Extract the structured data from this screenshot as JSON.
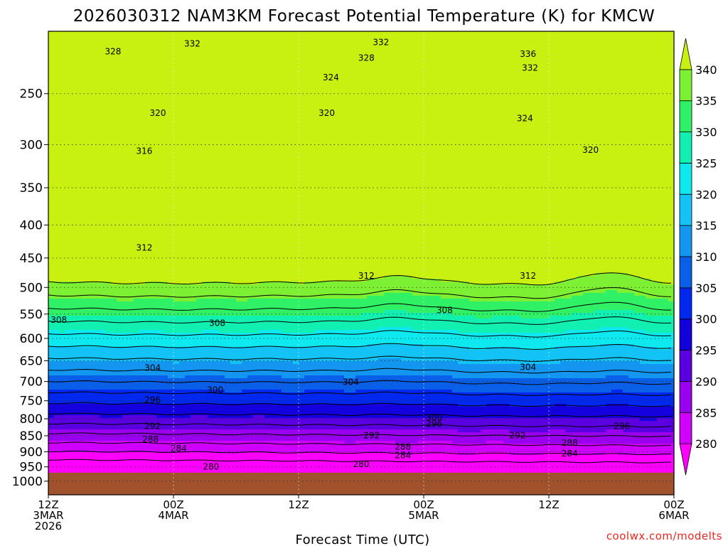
{
  "page": {
    "title": "2026030312 NAM3KM Forecast Potential Temperature (K) for KMCW",
    "credit": "coolwx.com/modelts"
  },
  "chart_data": {
    "type": "heatmap",
    "title": "2026030312 NAM3KM Forecast Potential Temperature (K) for KMCW",
    "xlabel": "Forecast Time (UTC)",
    "ylabel": "",
    "x_ticks": [
      {
        "hour": 0,
        "lines": [
          "12Z",
          "3MAR",
          "2026"
        ]
      },
      {
        "hour": 12,
        "lines": [
          "00Z",
          "4MAR"
        ]
      },
      {
        "hour": 24,
        "lines": [
          "12Z"
        ]
      },
      {
        "hour": 36,
        "lines": [
          "00Z",
          "5MAR"
        ]
      },
      {
        "hour": 48,
        "lines": [
          "12Z"
        ]
      },
      {
        "hour": 60,
        "lines": [
          "00Z",
          "6MAR"
        ]
      }
    ],
    "xlim": [
      0,
      60
    ],
    "y_ticks": [
      250,
      300,
      350,
      400,
      450,
      500,
      550,
      600,
      650,
      700,
      750,
      800,
      850,
      900,
      950,
      1000
    ],
    "ylim": [
      200,
      1050
    ],
    "y_scale": "log",
    "y_direction": "pressure-increasing-downward",
    "grid": true,
    "colorbar": {
      "labels": [
        280,
        285,
        290,
        295,
        300,
        305,
        310,
        315,
        320,
        325,
        330,
        335,
        340
      ],
      "colors": [
        "#ff00ff",
        "#d000ff",
        "#9900ee",
        "#5a00e0",
        "#1400dc",
        "#0028ef",
        "#0a5fe8",
        "#1296f0",
        "#13c3f5",
        "#0ee8ef",
        "#11f0b0",
        "#30f066",
        "#7ef033",
        "#c8f010"
      ],
      "range": [
        275,
        345
      ]
    },
    "terrain_color": "#a0522d",
    "surface_pressure": 970,
    "contour_interval": 4,
    "contour_labels": [
      {
        "text": "328",
        "hour": 6.2,
        "p": 215
      },
      {
        "text": "332",
        "hour": 13.8,
        "p": 209
      },
      {
        "text": "328",
        "hour": 30.5,
        "p": 220
      },
      {
        "text": "332",
        "hour": 31.9,
        "p": 208
      },
      {
        "text": "324",
        "hour": 27.1,
        "p": 236
      },
      {
        "text": "336",
        "hour": 46.0,
        "p": 217
      },
      {
        "text": "332",
        "hour": 46.2,
        "p": 228
      },
      {
        "text": "324",
        "hour": 45.7,
        "p": 273
      },
      {
        "text": "320",
        "hour": 10.5,
        "p": 268
      },
      {
        "text": "320",
        "hour": 26.7,
        "p": 268
      },
      {
        "text": "316",
        "hour": 9.2,
        "p": 307
      },
      {
        "text": "320",
        "hour": 52.0,
        "p": 306
      },
      {
        "text": "312",
        "hour": 9.2,
        "p": 434
      },
      {
        "text": "312",
        "hour": 30.5,
        "p": 480
      },
      {
        "text": "312",
        "hour": 46.0,
        "p": 480
      },
      {
        "text": "308",
        "hour": 1.0,
        "p": 562
      },
      {
        "text": "308",
        "hour": 16.2,
        "p": 568
      },
      {
        "text": "308",
        "hour": 38.0,
        "p": 543
      },
      {
        "text": "304",
        "hour": 10.0,
        "p": 667
      },
      {
        "text": "304",
        "hour": 29.0,
        "p": 702
      },
      {
        "text": "304",
        "hour": 46.0,
        "p": 665
      },
      {
        "text": "300",
        "hour": 16.0,
        "p": 722
      },
      {
        "text": "296",
        "hour": 10.0,
        "p": 748
      },
      {
        "text": "300",
        "hour": 37.0,
        "p": 797
      },
      {
        "text": "296",
        "hour": 37.0,
        "p": 814
      },
      {
        "text": "292",
        "hour": 10.0,
        "p": 821
      },
      {
        "text": "292",
        "hour": 31.0,
        "p": 849
      },
      {
        "text": "292",
        "hour": 45.0,
        "p": 849
      },
      {
        "text": "296",
        "hour": 55.0,
        "p": 822
      },
      {
        "text": "288",
        "hour": 9.8,
        "p": 861
      },
      {
        "text": "288",
        "hour": 34.0,
        "p": 884
      },
      {
        "text": "288",
        "hour": 50.0,
        "p": 872
      },
      {
        "text": "284",
        "hour": 12.5,
        "p": 890
      },
      {
        "text": "284",
        "hour": 34.0,
        "p": 912
      },
      {
        "text": "284",
        "hour": 50.0,
        "p": 906
      },
      {
        "text": "280",
        "hour": 15.6,
        "p": 950
      },
      {
        "text": "280",
        "hour": 30.0,
        "p": 941
      }
    ]
  }
}
